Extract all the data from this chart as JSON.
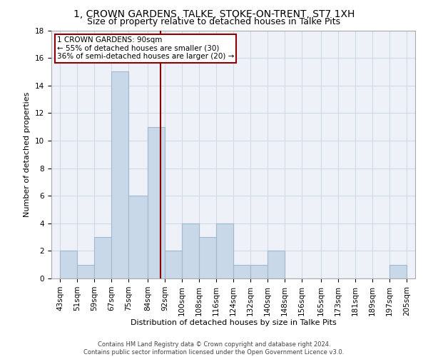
{
  "title": "1, CROWN GARDENS, TALKE, STOKE-ON-TRENT, ST7 1XH",
  "subtitle": "Size of property relative to detached houses in Talke Pits",
  "xlabel": "Distribution of detached houses by size in Talke Pits",
  "ylabel": "Number of detached properties",
  "footer_line1": "Contains HM Land Registry data © Crown copyright and database right 2024.",
  "footer_line2": "Contains public sector information licensed under the Open Government Licence v3.0.",
  "bins": [
    43,
    51,
    59,
    67,
    75,
    84,
    92,
    100,
    108,
    116,
    124,
    132,
    140,
    148,
    156,
    165,
    173,
    181,
    189,
    197,
    205
  ],
  "bar_heights": [
    2,
    1,
    3,
    15,
    6,
    11,
    2,
    4,
    3,
    4,
    1,
    1,
    2,
    0,
    0,
    0,
    0,
    0,
    0,
    1
  ],
  "bar_color": "#c8d8e8",
  "bar_edge_color": "#a0b8cc",
  "vline_x": 90,
  "vline_color": "#8b0000",
  "annotation_line1": "1 CROWN GARDENS: 90sqm",
  "annotation_line2": "← 55% of detached houses are smaller (30)",
  "annotation_line3": "36% of semi-detached houses are larger (20) →",
  "annotation_box_color": "#8b0000",
  "annotation_bg": "white",
  "ylim": [
    0,
    18
  ],
  "yticks": [
    0,
    2,
    4,
    6,
    8,
    10,
    12,
    14,
    16,
    18
  ],
  "grid_color": "#d0d8e8",
  "bg_color": "#eef2f8",
  "title_fontsize": 10,
  "subtitle_fontsize": 9,
  "ylabel_fontsize": 8,
  "xlabel_fontsize": 8,
  "tick_fontsize": 7.5,
  "annotation_fontsize": 7.5,
  "footer_fontsize": 6
}
